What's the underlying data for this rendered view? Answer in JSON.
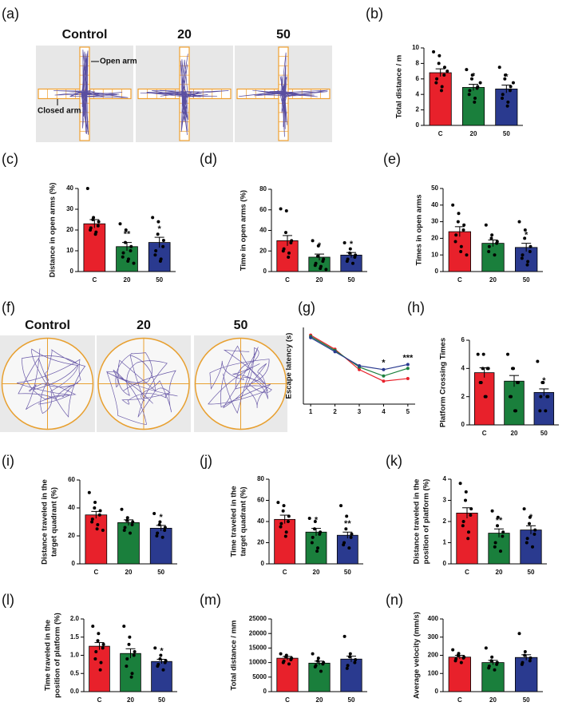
{
  "image_panels": [
    {
      "label": "(a)",
      "titles": [
        "Control",
        "20",
        "50"
      ],
      "annotations": [
        "Open arm",
        "Closed arm"
      ]
    },
    {
      "label": "(f)",
      "titles": [
        "Control",
        "20",
        "50"
      ]
    }
  ],
  "chart_data": [
    {
      "type": "bar",
      "panel": "(b)",
      "ylabel": "Total distance / m",
      "categories": [
        "C",
        "20",
        "50"
      ],
      "colors": [
        "#e8212b",
        "#1a7f3c",
        "#2a3a8f"
      ],
      "values": [
        6.8,
        4.9,
        4.7
      ],
      "errors": [
        0.5,
        0.4,
        0.5
      ],
      "annotations": [
        null,
        "*",
        "*"
      ],
      "points": [
        [
          9.5,
          9.0,
          8.0,
          7.5,
          6.5,
          6.0,
          5.5,
          5.0,
          4.5,
          7.0
        ],
        [
          7.2,
          6.5,
          6.0,
          5.0,
          4.8,
          4.5,
          4.0,
          3.5,
          3.0,
          5.5
        ],
        [
          7.5,
          6.5,
          6.0,
          5.0,
          4.5,
          4.0,
          3.5,
          3.0,
          2.5,
          5.5
        ]
      ],
      "ylim": [
        0,
        10
      ],
      "yticks": [
        0,
        2,
        4,
        6,
        8,
        10
      ]
    },
    {
      "type": "bar",
      "panel": "(c)",
      "ylabel": "Distance in open arms (%)",
      "categories": [
        "C",
        "20",
        "50"
      ],
      "colors": [
        "#e8212b",
        "#1a7f3c",
        "#2a3a8f"
      ],
      "values": [
        23,
        12,
        14
      ],
      "errors": [
        2,
        2,
        2.5
      ],
      "annotations": [
        null,
        "**",
        "*"
      ],
      "points": [
        [
          40,
          26,
          25,
          24,
          22,
          21,
          20,
          19,
          18
        ],
        [
          23,
          20,
          14,
          12,
          10,
          9,
          7,
          6,
          5,
          4
        ],
        [
          26,
          24,
          18,
          15,
          12,
          10,
          8,
          6,
          5
        ]
      ],
      "ylim": [
        0,
        40
      ],
      "yticks": [
        0,
        10,
        20,
        30,
        40
      ]
    },
    {
      "type": "bar",
      "panel": "(d)",
      "ylabel": "Time in open arms (%)",
      "categories": [
        "C",
        "20",
        "50"
      ],
      "colors": [
        "#e8212b",
        "#1a7f3c",
        "#2a3a8f"
      ],
      "values": [
        30,
        14,
        16
      ],
      "errors": [
        5,
        3,
        2.5
      ],
      "annotations": [
        null,
        "*",
        "*"
      ],
      "points": [
        [
          61,
          59,
          38,
          30,
          28,
          22,
          20,
          18,
          14
        ],
        [
          30,
          25,
          15,
          12,
          10,
          8,
          6,
          5,
          3,
          2
        ],
        [
          28,
          22,
          18,
          16,
          14,
          12,
          10,
          8
        ]
      ],
      "ylim": [
        0,
        80
      ],
      "yticks": [
        0,
        20,
        40,
        60,
        80
      ]
    },
    {
      "type": "bar",
      "panel": "(e)",
      "ylabel": "Times in open arms",
      "categories": [
        "C",
        "20",
        "50"
      ],
      "colors": [
        "#e8212b",
        "#1a7f3c",
        "#2a3a8f"
      ],
      "values": [
        24,
        17,
        14.5
      ],
      "errors": [
        3,
        2,
        2.5
      ],
      "annotations": [
        null,
        null,
        "*"
      ],
      "points": [
        [
          40,
          35,
          30,
          28,
          25,
          22,
          18,
          15,
          12,
          10
        ],
        [
          28,
          22,
          20,
          18,
          17,
          15,
          12,
          10
        ],
        [
          30,
          25,
          20,
          15,
          12,
          10,
          8,
          6,
          4
        ]
      ],
      "ylim": [
        0,
        50
      ],
      "yticks": [
        0,
        10,
        20,
        30,
        40,
        50
      ]
    },
    {
      "type": "line",
      "panel": "(g)",
      "ylabel": "Escape latency (s)",
      "x": [
        1,
        2,
        3,
        4,
        5
      ],
      "series": [
        {
          "color": "#e8212b",
          "values": [
            54,
            43,
            27,
            18,
            20
          ]
        },
        {
          "color": "#1a7f3c",
          "values": [
            53,
            42,
            29,
            22,
            28
          ]
        },
        {
          "color": "#2a3a8f",
          "values": [
            52,
            41,
            30,
            27,
            31
          ]
        }
      ],
      "annotations": [
        null,
        null,
        null,
        "*",
        "***"
      ],
      "xlim": [
        0.7,
        5.3
      ],
      "xticks": [
        1,
        2,
        3,
        4,
        5
      ],
      "ylim": [
        0,
        60
      ]
    },
    {
      "type": "bar",
      "panel": "(h)",
      "ylabel": "Platform Crossing Times",
      "categories": [
        "C",
        "20",
        "50"
      ],
      "colors": [
        "#e8212b",
        "#1a7f3c",
        "#2a3a8f"
      ],
      "values": [
        3.7,
        3.1,
        2.3
      ],
      "errors": [
        0.35,
        0.4,
        0.25
      ],
      "annotations": [
        null,
        null,
        "*"
      ],
      "points": [
        [
          5,
          5,
          4,
          4,
          4,
          3,
          3,
          2,
          2
        ],
        [
          5,
          4,
          4,
          3,
          3,
          2,
          2,
          1,
          1
        ],
        [
          4.5,
          3,
          3,
          2,
          2,
          2,
          1,
          1
        ]
      ],
      "ylim": [
        0,
        6
      ],
      "yticks": [
        0,
        2,
        4,
        6
      ]
    },
    {
      "type": "bar",
      "panel": "(i)",
      "ylabel": [
        "Distance traveled in the",
        "target quadrant (%)"
      ],
      "categories": [
        "C",
        "20",
        "50"
      ],
      "colors": [
        "#e8212b",
        "#1a7f3c",
        "#2a3a8f"
      ],
      "values": [
        35,
        29.5,
        25.5
      ],
      "errors": [
        2.5,
        2,
        2
      ],
      "annotations": [
        null,
        null,
        "*"
      ],
      "points": [
        [
          51,
          44,
          40,
          38,
          35,
          32,
          30,
          28,
          25,
          24
        ],
        [
          39,
          33,
          31,
          30,
          28,
          26,
          24,
          22
        ],
        [
          36,
          30,
          28,
          26,
          24,
          22,
          20,
          19
        ]
      ],
      "ylim": [
        0,
        60
      ],
      "yticks": [
        0,
        20,
        40,
        60
      ]
    },
    {
      "type": "bar",
      "panel": "(j)",
      "ylabel": [
        "Time traveled in the",
        "target quadrant (%)"
      ],
      "categories": [
        "C",
        "20",
        "50"
      ],
      "colors": [
        "#e8212b",
        "#1a7f3c",
        "#2a3a8f"
      ],
      "values": [
        42,
        30,
        27
      ],
      "errors": [
        4,
        3.5,
        3
      ],
      "annotations": [
        null,
        "*",
        "**"
      ],
      "points": [
        [
          58,
          55,
          50,
          45,
          40,
          38,
          35,
          30,
          26
        ],
        [
          43,
          40,
          33,
          30,
          28,
          25,
          20,
          15,
          12
        ],
        [
          55,
          45,
          33,
          28,
          25,
          20,
          18,
          15
        ]
      ],
      "ylim": [
        0,
        80
      ],
      "yticks": [
        0,
        20,
        40,
        60,
        80
      ]
    },
    {
      "type": "bar",
      "panel": "(k)",
      "ylabel": [
        "Distance traveled in the",
        "position of platform (%)"
      ],
      "categories": [
        "C",
        "20",
        "50"
      ],
      "colors": [
        "#e8212b",
        "#1a7f3c",
        "#2a3a8f"
      ],
      "values": [
        2.4,
        1.45,
        1.6
      ],
      "errors": [
        0.25,
        0.2,
        0.2
      ],
      "annotations": [
        null,
        "**",
        "*"
      ],
      "points": [
        [
          3.8,
          3.4,
          3.0,
          2.6,
          2.3,
          2.0,
          1.8,
          1.5,
          1.2
        ],
        [
          2.5,
          2.2,
          1.8,
          1.5,
          1.3,
          1.0,
          0.8,
          0.6
        ],
        [
          2.6,
          2.2,
          1.9,
          1.6,
          1.4,
          1.2,
          1.0,
          0.8
        ]
      ],
      "ylim": [
        0,
        4
      ],
      "yticks": [
        0,
        1,
        2,
        3,
        4
      ]
    },
    {
      "type": "bar",
      "panel": "(l)",
      "ylabel": [
        "Time traveled in the",
        "position of platform (%)"
      ],
      "categories": [
        "C",
        "20",
        "50"
      ],
      "colors": [
        "#e8212b",
        "#1a7f3c",
        "#2a3a8f"
      ],
      "values": [
        1.25,
        1.05,
        0.83
      ],
      "errors": [
        0.1,
        0.13,
        0.06
      ],
      "annotations": [
        null,
        null,
        "*"
      ],
      "points": [
        [
          1.8,
          1.6,
          1.4,
          1.3,
          1.2,
          1.1,
          0.9,
          0.8,
          0.6
        ],
        [
          1.8,
          1.5,
          1.3,
          1.1,
          1.0,
          0.9,
          0.7,
          0.5,
          0.4
        ],
        [
          1.2,
          1.0,
          0.9,
          0.85,
          0.8,
          0.75,
          0.7,
          0.6
        ]
      ],
      "ylim": [
        0,
        2
      ],
      "yticks": [
        {
          "value": 0,
          "label": "0.0"
        },
        {
          "value": 0.5,
          "label": "0.5"
        },
        {
          "value": 1,
          "label": "1.0"
        },
        {
          "value": 1.5,
          "label": "1.5"
        },
        {
          "value": 2,
          "label": "2.0"
        }
      ]
    },
    {
      "type": "bar",
      "panel": "(m)",
      "ylabel": "Total distance / mm",
      "categories": [
        "C",
        "20",
        "50"
      ],
      "colors": [
        "#e8212b",
        "#1a7f3c",
        "#2a3a8f"
      ],
      "values": [
        11500,
        9800,
        11200
      ],
      "errors": [
        600,
        700,
        1000
      ],
      "annotations": [
        null,
        null,
        null
      ],
      "points": [
        [
          13000,
          12500,
          12000,
          11500,
          11000,
          10500,
          10000,
          9500
        ],
        [
          13000,
          11500,
          10500,
          10000,
          9500,
          9000,
          8500,
          7000
        ],
        [
          19000,
          13000,
          12000,
          11000,
          10000,
          9000,
          8000
        ]
      ],
      "ylim": [
        0,
        25000
      ],
      "yticks": [
        0,
        5000,
        10000,
        15000,
        20000,
        25000
      ]
    },
    {
      "type": "bar",
      "panel": "(n)",
      "ylabel": "Average velocity (mm/s)",
      "categories": [
        "C",
        "20",
        "50"
      ],
      "colors": [
        "#e8212b",
        "#1a7f3c",
        "#2a3a8f"
      ],
      "values": [
        190,
        160,
        188
      ],
      "errors": [
        10,
        12,
        15
      ],
      "annotations": [
        null,
        null,
        null
      ],
      "points": [
        [
          230,
          210,
          200,
          190,
          185,
          180,
          170,
          160
        ],
        [
          240,
          190,
          170,
          160,
          150,
          140,
          130,
          120
        ],
        [
          320,
          220,
          200,
          185,
          170,
          160,
          150
        ]
      ],
      "ylim": [
        0,
        400
      ],
      "yticks": [
        0,
        100,
        200,
        300,
        400
      ]
    }
  ]
}
